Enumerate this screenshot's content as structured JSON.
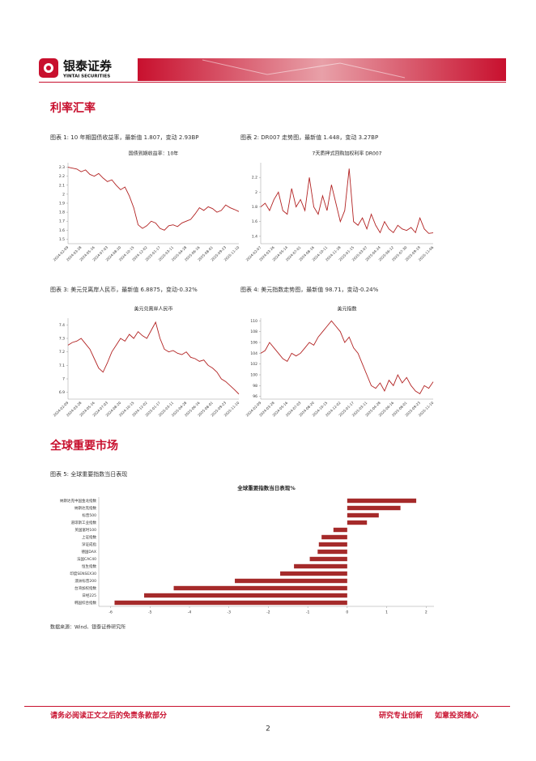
{
  "header": {
    "brand": "银泰证券",
    "brand_en": "YINTAI SECURITIES"
  },
  "sections": [
    {
      "title": "利率汇率"
    },
    {
      "title": "全球重要市场"
    }
  ],
  "captions": [
    "图表 1: 10 年期国债收益率，最新值 1.807，变动 2.93BP",
    "图表 2: DR007 走势图，最新值 1.448，变动 3.27BP",
    "图表 3: 美元兑离岸人民币，最新值 6.8875，变动-0.32%",
    "图表 4: 美元指数走势图，最新值 98.71，变动-0.24%",
    "图表 5: 全球重要指数当日表现"
  ],
  "chart_data": [
    {
      "type": "line",
      "title": "国债到期收益率：10年",
      "color": "#b22222",
      "categories": [
        "2024-02-09",
        null,
        null,
        "2024-03-28",
        null,
        null,
        "2024-05-16",
        null,
        null,
        "2024-07-03",
        null,
        null,
        "2024-08-20",
        null,
        null,
        "2024-10-15",
        null,
        null,
        "2024-12-02",
        null,
        null,
        "2025-01-17",
        null,
        null,
        "2025-03-11",
        null,
        null,
        "2025-04-28",
        null,
        null,
        "2025-06-16",
        null,
        null,
        "2025-08-01",
        null,
        null,
        "2025-09-23",
        null,
        null,
        "2025-11-10"
      ],
      "values": [
        2.3,
        2.29,
        2.28,
        2.25,
        2.27,
        2.22,
        2.2,
        2.23,
        2.18,
        2.14,
        2.16,
        2.1,
        2.05,
        2.08,
        1.98,
        1.85,
        1.66,
        1.62,
        1.65,
        1.7,
        1.68,
        1.62,
        1.6,
        1.65,
        1.66,
        1.64,
        1.68,
        1.7,
        1.72,
        1.78,
        1.85,
        1.82,
        1.86,
        1.84,
        1.8,
        1.82,
        1.88,
        1.85,
        1.83,
        1.807
      ],
      "ylim": [
        1.45,
        2.35
      ],
      "yticks": [
        1.5,
        1.6,
        1.7,
        1.8,
        1.9,
        2,
        2.1,
        2.2,
        2.3
      ]
    },
    {
      "type": "line",
      "title": "7天质押式回购加权利率 DR007",
      "color": "#b22222",
      "categories": [
        "2024-02-07",
        null,
        null,
        "2024-03-26",
        null,
        null,
        "2024-05-14",
        null,
        null,
        "2024-07-01",
        null,
        null,
        "2024-08-16",
        null,
        null,
        "2024-10-11",
        null,
        null,
        "2024-11-28",
        null,
        null,
        "2025-01-15",
        null,
        null,
        "2025-03-07",
        null,
        null,
        "2025-04-24",
        null,
        null,
        "2025-06-12",
        null,
        null,
        "2025-07-30",
        null,
        null,
        "2025-09-19",
        null,
        null,
        "2025-11-06"
      ],
      "values": [
        1.8,
        1.85,
        1.75,
        1.9,
        2.0,
        1.75,
        1.7,
        2.05,
        1.8,
        1.9,
        1.75,
        2.2,
        1.8,
        1.7,
        1.95,
        1.75,
        2.1,
        1.85,
        1.6,
        1.75,
        2.32,
        1.6,
        1.55,
        1.65,
        1.5,
        1.7,
        1.55,
        1.45,
        1.6,
        1.5,
        1.45,
        1.55,
        1.5,
        1.48,
        1.52,
        1.45,
        1.65,
        1.5,
        1.44,
        1.448
      ],
      "ylim": [
        1.3,
        2.4
      ],
      "yticks": [
        1.4,
        1.6,
        1.8,
        2,
        2.2
      ]
    },
    {
      "type": "line",
      "title": "美元兑离岸人民币",
      "color": "#b22222",
      "categories": [
        "2024-02-09",
        null,
        null,
        "2024-03-28",
        null,
        null,
        "2024-05-16",
        null,
        null,
        "2024-07-03",
        null,
        null,
        "2024-08-20",
        null,
        null,
        "2024-10-15",
        null,
        null,
        "2024-12-02",
        null,
        null,
        "2025-01-17",
        null,
        null,
        "2025-03-11",
        null,
        null,
        "2025-04-28",
        null,
        null,
        "2025-06-16",
        null,
        null,
        "2025-08-01",
        null,
        null,
        "2025-09-23",
        null,
        null,
        "2025-11-10"
      ],
      "values": [
        7.25,
        7.27,
        7.28,
        7.3,
        7.26,
        7.22,
        7.15,
        7.08,
        7.05,
        7.12,
        7.2,
        7.25,
        7.3,
        7.28,
        7.33,
        7.3,
        7.35,
        7.32,
        7.3,
        7.36,
        7.42,
        7.3,
        7.22,
        7.2,
        7.21,
        7.19,
        7.18,
        7.2,
        7.16,
        7.15,
        7.13,
        7.14,
        7.1,
        7.08,
        7.05,
        7.0,
        6.98,
        6.95,
        6.92,
        6.8875
      ],
      "ylim": [
        6.85,
        7.45
      ],
      "yticks": [
        6.9,
        7,
        7.1,
        7.2,
        7.3,
        7.4
      ]
    },
    {
      "type": "line",
      "title": "美元指数",
      "color": "#b22222",
      "categories": [
        "2024-02-09",
        null,
        null,
        "2024-03-28",
        null,
        null,
        "2024-05-16",
        null,
        null,
        "2024-07-03",
        null,
        null,
        "2024-08-20",
        null,
        null,
        "2024-10-15",
        null,
        null,
        "2024-12-02",
        null,
        null,
        "2025-01-17",
        null,
        null,
        "2025-03-11",
        null,
        null,
        "2025-04-28",
        null,
        null,
        "2025-06-16",
        null,
        null,
        "2025-08-01",
        null,
        null,
        "2025-09-23",
        null,
        null,
        "2025-11-10"
      ],
      "values": [
        104,
        104.5,
        106,
        105,
        104,
        103,
        102.5,
        104,
        103.5,
        104,
        105,
        106,
        105.5,
        107,
        108,
        109,
        110,
        109,
        108,
        106,
        107,
        105,
        104,
        102,
        100,
        98,
        97.5,
        98.5,
        97,
        99,
        98,
        100,
        98.5,
        99.5,
        98,
        97,
        96.5,
        98,
        97.5,
        98.71
      ],
      "ylim": [
        95.5,
        110.5
      ],
      "yticks": [
        96,
        98,
        100,
        102,
        104,
        106,
        108,
        110
      ]
    },
    {
      "type": "hbar",
      "title": "全球重要指数当日表现%",
      "color": "#a52a2a",
      "categories": [
        "纳斯达克中国金龙指数",
        "纳斯达克指数",
        "标普500",
        "道琼斯工业指数",
        "英国富时100",
        "上证指数",
        "深证成指",
        "德国DAX",
        "法国CAC40",
        "恒生指数",
        "印度SENSEX30",
        "澳洲标普200",
        "台湾加权指数",
        "日经225",
        "韩国综合指数"
      ],
      "values": [
        1.75,
        1.35,
        0.8,
        0.5,
        -0.35,
        -0.65,
        -0.72,
        -0.75,
        -0.95,
        -1.35,
        -1.7,
        -2.85,
        -4.4,
        -5.15,
        -5.9
      ],
      "xlim": [
        -6.3,
        2.2
      ],
      "xticks": [
        -6,
        -5,
        -4,
        -3,
        -2,
        -1,
        0,
        1,
        2
      ]
    }
  ],
  "source": "数据来源：Wind、银泰证券研究所",
  "footer": {
    "left": "请务必阅读正文之后的免责条款部分",
    "right_1": "研究专业创新",
    "right_2": "如意投资随心"
  },
  "page_number": "2"
}
